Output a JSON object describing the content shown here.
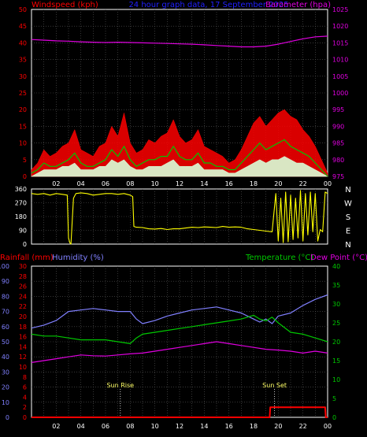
{
  "title": "24 hour graph data, 17 September 2025",
  "colors": {
    "background": "#000000",
    "panel_border": "#ffffff",
    "grid": "#5a5a5a",
    "title": "#2020ff",
    "wind_label": "#ff0000",
    "gust": "#ff0000",
    "avg_wind": "#00c800",
    "latest_wind": "#d8ffd8",
    "barometer": "#e000e0",
    "direction": "#ffff00",
    "compass": "#ffffff",
    "rainfall": "#ff0000",
    "humidity": "#8080ff",
    "temperature": "#00c800",
    "dewpoint": "#e000e0",
    "sun_marker": "#ffffff",
    "sun_text": "#ffff66"
  },
  "chart_data": [
    {
      "type": "area",
      "panel": "wind_pressure",
      "title": "24 hour graph data, 17 September 2025",
      "ylabel_left": "Windspeed (kph)",
      "ylabel_right": "Barometer (hpa)",
      "ylim_left": [
        0,
        50
      ],
      "yticks_left": [
        0,
        5,
        10,
        15,
        20,
        25,
        30,
        35,
        40,
        45,
        50
      ],
      "ylim_right": [
        975,
        1025
      ],
      "yticks_right": [
        975,
        980,
        985,
        990,
        995,
        1000,
        1005,
        1010,
        1015,
        1020,
        1025
      ],
      "x_hours": [
        0,
        24
      ],
      "x_ticklabels": [
        "02",
        "04",
        "06",
        "08",
        "10",
        "12",
        "14",
        "16",
        "18",
        "20",
        "22",
        "00"
      ],
      "grid": true,
      "series": [
        {
          "name": "gust",
          "axis": "left",
          "style": "fill",
          "x": [
            0,
            0.5,
            1,
            1.5,
            2,
            2.5,
            3,
            3.5,
            4,
            4.5,
            5,
            5.5,
            6,
            6.5,
            7,
            7.5,
            8,
            8.5,
            9,
            9.5,
            10,
            10.5,
            11,
            11.5,
            12,
            12.5,
            13,
            13.5,
            14,
            14.5,
            15,
            15.5,
            16,
            16.5,
            17,
            17.5,
            18,
            18.5,
            19,
            19.5,
            20,
            20.5,
            21,
            21.5,
            22,
            22.5,
            23,
            23.5,
            24
          ],
          "values": [
            2,
            4,
            8,
            6,
            7,
            9,
            10,
            14,
            8,
            7,
            6,
            9,
            10,
            15,
            12,
            19,
            10,
            7,
            8,
            11,
            10,
            12,
            13,
            17,
            12,
            10,
            11,
            14,
            9,
            8,
            7,
            6,
            4,
            5,
            8,
            12,
            16,
            18,
            15,
            17,
            19,
            20,
            18,
            17,
            14,
            12,
            9,
            5,
            1
          ]
        },
        {
          "name": "average",
          "axis": "left",
          "style": "line",
          "x": [
            0,
            0.5,
            1,
            1.5,
            2,
            2.5,
            3,
            3.5,
            4,
            4.5,
            5,
            5.5,
            6,
            6.5,
            7,
            7.5,
            8,
            8.5,
            9,
            9.5,
            10,
            10.5,
            11,
            11.5,
            12,
            12.5,
            13,
            13.5,
            14,
            14.5,
            15,
            15.5,
            16,
            16.5,
            17,
            17.5,
            18,
            18.5,
            19,
            19.5,
            20,
            20.5,
            21,
            21.5,
            22,
            22.5,
            23,
            23.5,
            24
          ],
          "values": [
            1,
            2,
            4,
            3,
            3,
            4,
            5,
            7,
            4,
            3,
            3,
            4,
            5,
            8,
            6,
            9,
            5,
            3,
            4,
            5,
            5,
            6,
            6,
            9,
            6,
            5,
            5,
            7,
            4,
            4,
            3,
            3,
            2,
            2,
            4,
            6,
            8,
            10,
            8,
            9,
            10,
            11,
            9,
            8,
            7,
            6,
            4,
            2,
            0
          ]
        },
        {
          "name": "latest",
          "axis": "left",
          "style": "fill",
          "x": [
            0,
            0.5,
            1,
            1.5,
            2,
            2.5,
            3,
            3.5,
            4,
            4.5,
            5,
            5.5,
            6,
            6.5,
            7,
            7.5,
            8,
            8.5,
            9,
            9.5,
            10,
            10.5,
            11,
            11.5,
            12,
            12.5,
            13,
            13.5,
            14,
            14.5,
            15,
            15.5,
            16,
            16.5,
            17,
            17.5,
            18,
            18.5,
            19,
            19.5,
            20,
            20.5,
            21,
            21.5,
            22,
            22.5,
            23,
            23.5,
            24
          ],
          "values": [
            0,
            1,
            2,
            2,
            2,
            3,
            3,
            4,
            2,
            2,
            2,
            3,
            3,
            5,
            4,
            5,
            3,
            2,
            2,
            3,
            3,
            3,
            4,
            5,
            3,
            3,
            3,
            4,
            2,
            2,
            2,
            2,
            1,
            1,
            2,
            3,
            4,
            5,
            4,
            5,
            5,
            6,
            5,
            4,
            4,
            3,
            2,
            1,
            0
          ]
        },
        {
          "name": "barometer",
          "axis": "right",
          "style": "line",
          "x": [
            0,
            1,
            2,
            3,
            4,
            5,
            6,
            7,
            8,
            9,
            10,
            11,
            12,
            13,
            14,
            15,
            16,
            17,
            18,
            19,
            20,
            21,
            22,
            23,
            24
          ],
          "values": [
            1016,
            1015.8,
            1015.6,
            1015.5,
            1015.3,
            1015.2,
            1015.1,
            1015.2,
            1015.1,
            1015.0,
            1014.9,
            1014.8,
            1014.7,
            1014.6,
            1014.4,
            1014.2,
            1014.0,
            1013.8,
            1013.8,
            1014.0,
            1014.6,
            1015.4,
            1016.2,
            1016.8,
            1017
          ]
        }
      ]
    },
    {
      "type": "line",
      "panel": "wind_direction",
      "ylabel": "",
      "ylim": [
        0,
        360
      ],
      "yticks": [
        0,
        90,
        180,
        270,
        360
      ],
      "compass_labels": [
        "N",
        "W",
        "S",
        "E",
        "N"
      ],
      "x_hours": [
        0,
        24
      ],
      "grid": true,
      "series": [
        {
          "name": "direction",
          "x": [
            0,
            0.5,
            1,
            1.5,
            2,
            2.5,
            2.9,
            3.0,
            3.1,
            3.2,
            3.4,
            3.6,
            4,
            4.5,
            5,
            5.5,
            6,
            6.5,
            7,
            7.5,
            8,
            8.2,
            8.3,
            8.5,
            9,
            9.5,
            10,
            10.5,
            11,
            11.5,
            12,
            12.5,
            13,
            13.5,
            14,
            14.5,
            15,
            15.5,
            16,
            16.5,
            17,
            17.5,
            18,
            18.5,
            19,
            19.5,
            19.8,
            20.0,
            20.2,
            20.4,
            20.6,
            20.8,
            21.0,
            21.2,
            21.4,
            21.6,
            21.8,
            22.0,
            22.2,
            22.4,
            22.6,
            22.8,
            23.0,
            23.2,
            23.4,
            23.6,
            23.8,
            24
          ],
          "values": [
            330,
            325,
            330,
            320,
            330,
            325,
            320,
            40,
            10,
            0,
            300,
            330,
            335,
            330,
            320,
            325,
            330,
            330,
            325,
            330,
            320,
            310,
            115,
            110,
            108,
            100,
            98,
            102,
            95,
            100,
            100,
            105,
            110,
            108,
            112,
            110,
            108,
            115,
            110,
            112,
            110,
            100,
            95,
            90,
            85,
            80,
            330,
            20,
            300,
            10,
            340,
            15,
            320,
            30,
            300,
            40,
            350,
            20,
            330,
            60,
            340,
            80,
            330,
            20,
            95,
            80,
            340,
            330
          ]
        }
      ]
    },
    {
      "type": "line",
      "panel": "temperature_humidity_rain",
      "ylabel_left": "Rainfall (mm)",
      "ylabel_left2": "Humidity (%)",
      "ylabel_right": "Temperature (°C)",
      "ylabel_right2": "Dew Point (°C)",
      "ylim_rain": [
        0,
        30
      ],
      "yticks_rain": [
        0,
        2,
        4,
        6,
        8,
        10,
        12,
        14,
        16,
        18,
        20,
        22,
        24,
        26,
        28,
        30
      ],
      "ylim_humidity": [
        0,
        100
      ],
      "yticks_humidity": [
        0,
        10,
        20,
        30,
        40,
        50,
        60,
        70,
        80,
        90,
        100
      ],
      "ylim_temp": [
        0,
        40
      ],
      "yticks_temp": [
        0,
        5,
        10,
        15,
        20,
        25,
        30,
        35,
        40
      ],
      "x_hours": [
        0,
        24
      ],
      "x_ticklabels": [
        "02",
        "04",
        "06",
        "08",
        "10",
        "12",
        "14",
        "16",
        "18",
        "20",
        "22",
        "00"
      ],
      "grid": true,
      "annotations": [
        {
          "text": "Sun Rise",
          "hour": 7.2
        },
        {
          "text": "Sun Set",
          "hour": 19.7
        }
      ],
      "series": [
        {
          "name": "humidity",
          "axis": "humidity",
          "x": [
            0,
            1,
            2,
            3,
            4,
            5,
            6,
            7,
            8,
            8.5,
            9,
            10,
            11,
            12,
            13,
            14,
            15,
            16,
            17,
            18,
            18.5,
            19,
            19.5,
            20,
            21,
            22,
            23,
            24
          ],
          "values": [
            59,
            61,
            64,
            70,
            71,
            72,
            71,
            70,
            70,
            65,
            62,
            64,
            67,
            69,
            71,
            72,
            73,
            71,
            69,
            65,
            63,
            65,
            62,
            67,
            69,
            74,
            78,
            81
          ]
        },
        {
          "name": "temperature",
          "axis": "temp",
          "x": [
            0,
            1,
            2,
            3,
            4,
            5,
            6,
            7,
            8,
            8.5,
            9,
            10,
            11,
            12,
            13,
            14,
            15,
            16,
            17,
            18,
            18.5,
            19,
            19.5,
            20,
            21,
            22,
            23,
            24
          ],
          "values": [
            22,
            21.5,
            21.5,
            21,
            20.5,
            20.5,
            20.5,
            20,
            19.5,
            21,
            22,
            22.5,
            23,
            23.5,
            24,
            24.5,
            25,
            25.5,
            26,
            27,
            26,
            25.5,
            26.5,
            25,
            22.5,
            22,
            21,
            20
          ]
        },
        {
          "name": "dewpoint",
          "axis": "temp",
          "x": [
            0,
            1,
            2,
            3,
            4,
            5,
            6,
            7,
            8,
            9,
            10,
            11,
            12,
            13,
            14,
            15,
            16,
            17,
            18,
            19,
            20,
            21,
            22,
            23,
            24
          ],
          "values": [
            14.5,
            15,
            15.5,
            16,
            16.5,
            16.3,
            16.2,
            16.5,
            16.8,
            17,
            17.5,
            18,
            18.5,
            19,
            19.5,
            20,
            19.5,
            19,
            18.5,
            18,
            17.8,
            17.5,
            17,
            17.5,
            17
          ]
        },
        {
          "name": "rainfall",
          "axis": "rain",
          "x": [
            0,
            19.3,
            19.35,
            23.8,
            23.85,
            24
          ],
          "values": [
            0,
            0,
            2,
            2,
            0,
            0
          ]
        }
      ]
    }
  ]
}
